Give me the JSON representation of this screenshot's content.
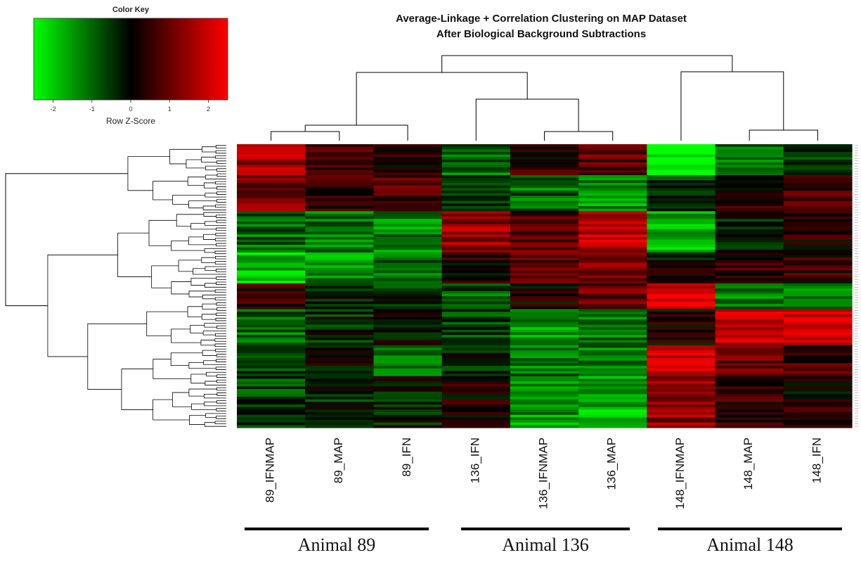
{
  "chart_data": {
    "type": "heatmap",
    "title_line1": "Average-Linkage + Correlation Clustering on MAP Dataset",
    "title_line2": "After Biological Background Subtractions",
    "columns": [
      "89_IFNMAP",
      "89_MAP",
      "89_IFN",
      "136_IFN",
      "136_IFNMAP",
      "136_MAP",
      "148_IFNMAP",
      "148_MAP",
      "148_IFN"
    ],
    "groups": [
      {
        "label": "Animal 89",
        "columns": [
          "89_IFNMAP",
          "89_MAP",
          "89_IFN"
        ]
      },
      {
        "label": "Animal 136",
        "columns": [
          "136_IFN",
          "136_IFNMAP",
          "136_MAP"
        ]
      },
      {
        "label": "Animal 148",
        "columns": [
          "148_IFNMAP",
          "148_MAP",
          "148_IFN"
        ]
      }
    ],
    "color_key": {
      "title": "Color Key",
      "label": "Row Z-Score",
      "ticks": [
        "-2",
        "-1",
        "0",
        "1",
        "2"
      ],
      "range": [
        -2.5,
        2.5
      ],
      "low_color": "#00ff00",
      "mid_color": "#000000",
      "high_color": "#ff0000"
    },
    "row_count": 110,
    "row_blocks": [
      {
        "rows": 12,
        "values": [
          1.4,
          0.6,
          0.4,
          -1.0,
          0.3,
          0.9,
          -2.2,
          -1.0,
          -0.6
        ]
      },
      {
        "rows": 14,
        "values": [
          1.0,
          0.5,
          0.6,
          -0.6,
          -0.9,
          -1.3,
          -0.3,
          0.3,
          0.5
        ]
      },
      {
        "rows": 16,
        "values": [
          -0.9,
          -1.0,
          -1.2,
          1.3,
          0.8,
          1.6,
          -1.6,
          -0.2,
          0.3
        ]
      },
      {
        "rows": 12,
        "values": [
          -1.7,
          -1.3,
          -1.0,
          0.3,
          0.8,
          1.1,
          0.0,
          0.4,
          0.4
        ]
      },
      {
        "rows": 10,
        "values": [
          0.4,
          -0.2,
          -0.3,
          -0.8,
          0.2,
          0.9,
          2.0,
          -1.1,
          -1.0
        ]
      },
      {
        "rows": 14,
        "values": [
          -1.0,
          -0.3,
          -0.2,
          -0.6,
          -1.3,
          -1.1,
          0.2,
          1.8,
          1.6
        ]
      },
      {
        "rows": 12,
        "values": [
          -0.4,
          0.1,
          -0.8,
          -0.3,
          -1.0,
          -1.0,
          1.9,
          0.9,
          0.6
        ]
      },
      {
        "rows": 20,
        "values": [
          -0.5,
          -0.3,
          -0.2,
          0.2,
          -1.3,
          -1.6,
          1.3,
          0.4,
          0.2
        ]
      }
    ]
  }
}
